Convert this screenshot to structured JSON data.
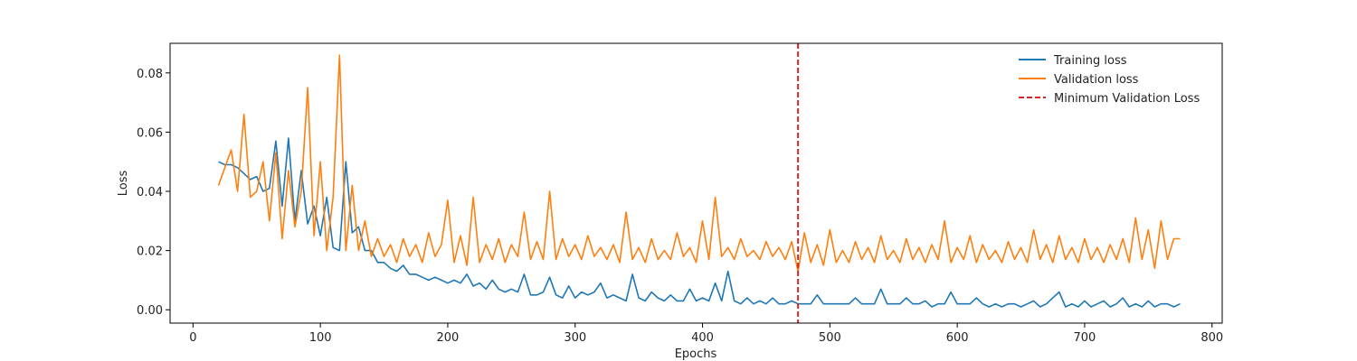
{
  "chart_data": {
    "type": "line",
    "title": "",
    "xlabel": "Epochs",
    "ylabel": "Loss",
    "xlim": [
      -18,
      808
    ],
    "ylim": [
      -0.0045,
      0.09
    ],
    "xticks": [
      0,
      100,
      200,
      300,
      400,
      500,
      600,
      700,
      800
    ],
    "yticks": [
      0.0,
      0.02,
      0.04,
      0.06,
      0.08
    ],
    "ytick_labels": [
      "0.00",
      "0.02",
      "0.04",
      "0.06",
      "0.08"
    ],
    "grid": false,
    "legend_position": "top-right",
    "vline": {
      "x": 475,
      "label": "Minimum Validation Loss",
      "color": "#d62728",
      "style": "dashed"
    },
    "series": [
      {
        "name": "Training loss",
        "color": "#1f77b4",
        "x": [
          20,
          25,
          30,
          35,
          40,
          45,
          50,
          55,
          60,
          65,
          70,
          75,
          80,
          85,
          90,
          95,
          100,
          105,
          110,
          115,
          120,
          125,
          130,
          135,
          140,
          145,
          150,
          155,
          160,
          165,
          170,
          175,
          180,
          185,
          190,
          195,
          200,
          205,
          210,
          215,
          220,
          225,
          230,
          235,
          240,
          245,
          250,
          255,
          260,
          265,
          270,
          275,
          280,
          285,
          290,
          295,
          300,
          305,
          310,
          315,
          320,
          325,
          330,
          335,
          340,
          345,
          350,
          355,
          360,
          365,
          370,
          375,
          380,
          385,
          390,
          395,
          400,
          405,
          410,
          415,
          420,
          425,
          430,
          435,
          440,
          445,
          450,
          455,
          460,
          465,
          470,
          475,
          480,
          485,
          490,
          495,
          500,
          505,
          510,
          515,
          520,
          525,
          530,
          535,
          540,
          545,
          550,
          555,
          560,
          565,
          570,
          575,
          580,
          585,
          590,
          595,
          600,
          605,
          610,
          615,
          620,
          625,
          630,
          635,
          640,
          645,
          650,
          655,
          660,
          665,
          670,
          675,
          680,
          685,
          690,
          695,
          700,
          705,
          710,
          715,
          720,
          725,
          730,
          735,
          740,
          745,
          750,
          755,
          760,
          765,
          770,
          775
        ],
        "y": [
          0.05,
          0.049,
          0.049,
          0.048,
          0.046,
          0.044,
          0.045,
          0.04,
          0.041,
          0.057,
          0.035,
          0.058,
          0.03,
          0.047,
          0.029,
          0.035,
          0.025,
          0.038,
          0.021,
          0.02,
          0.05,
          0.026,
          0.028,
          0.02,
          0.02,
          0.016,
          0.016,
          0.014,
          0.013,
          0.015,
          0.012,
          0.012,
          0.011,
          0.01,
          0.011,
          0.01,
          0.009,
          0.01,
          0.009,
          0.012,
          0.008,
          0.009,
          0.007,
          0.01,
          0.007,
          0.006,
          0.007,
          0.006,
          0.012,
          0.005,
          0.005,
          0.006,
          0.011,
          0.005,
          0.004,
          0.008,
          0.004,
          0.006,
          0.005,
          0.006,
          0.009,
          0.004,
          0.005,
          0.004,
          0.003,
          0.012,
          0.004,
          0.003,
          0.006,
          0.004,
          0.003,
          0.005,
          0.003,
          0.003,
          0.007,
          0.003,
          0.004,
          0.003,
          0.009,
          0.003,
          0.013,
          0.003,
          0.002,
          0.004,
          0.002,
          0.003,
          0.002,
          0.004,
          0.002,
          0.002,
          0.003,
          0.002,
          0.002,
          0.002,
          0.005,
          0.002,
          0.002,
          0.002,
          0.002,
          0.002,
          0.004,
          0.002,
          0.002,
          0.002,
          0.007,
          0.002,
          0.002,
          0.002,
          0.004,
          0.002,
          0.002,
          0.003,
          0.001,
          0.002,
          0.002,
          0.006,
          0.002,
          0.002,
          0.002,
          0.004,
          0.002,
          0.001,
          0.002,
          0.001,
          0.002,
          0.002,
          0.001,
          0.002,
          0.003,
          0.001,
          0.002,
          0.004,
          0.006,
          0.001,
          0.002,
          0.001,
          0.003,
          0.001,
          0.002,
          0.003,
          0.001,
          0.002,
          0.004,
          0.001,
          0.002,
          0.001,
          0.003,
          0.001,
          0.002,
          0.002,
          0.001,
          0.002
        ]
      },
      {
        "name": "Validation loss",
        "color": "#ff7f0e",
        "x": [
          20,
          25,
          30,
          35,
          40,
          45,
          50,
          55,
          60,
          65,
          70,
          75,
          80,
          85,
          90,
          95,
          100,
          105,
          110,
          115,
          120,
          125,
          130,
          135,
          140,
          145,
          150,
          155,
          160,
          165,
          170,
          175,
          180,
          185,
          190,
          195,
          200,
          205,
          210,
          215,
          220,
          225,
          230,
          235,
          240,
          245,
          250,
          255,
          260,
          265,
          270,
          275,
          280,
          285,
          290,
          295,
          300,
          305,
          310,
          315,
          320,
          325,
          330,
          335,
          340,
          345,
          350,
          355,
          360,
          365,
          370,
          375,
          380,
          385,
          390,
          395,
          400,
          405,
          410,
          415,
          420,
          425,
          430,
          435,
          440,
          445,
          450,
          455,
          460,
          465,
          470,
          475,
          480,
          485,
          490,
          495,
          500,
          505,
          510,
          515,
          520,
          525,
          530,
          535,
          540,
          545,
          550,
          555,
          560,
          565,
          570,
          575,
          580,
          585,
          590,
          595,
          600,
          605,
          610,
          615,
          620,
          625,
          630,
          635,
          640,
          645,
          650,
          655,
          660,
          665,
          670,
          675,
          680,
          685,
          690,
          695,
          700,
          705,
          710,
          715,
          720,
          725,
          730,
          735,
          740,
          745,
          750,
          755,
          760,
          765,
          770,
          775
        ],
        "y": [
          0.042,
          0.048,
          0.054,
          0.04,
          0.066,
          0.038,
          0.04,
          0.05,
          0.03,
          0.053,
          0.024,
          0.047,
          0.028,
          0.04,
          0.075,
          0.025,
          0.05,
          0.02,
          0.038,
          0.086,
          0.02,
          0.042,
          0.02,
          0.03,
          0.018,
          0.024,
          0.018,
          0.022,
          0.016,
          0.024,
          0.018,
          0.022,
          0.016,
          0.026,
          0.018,
          0.022,
          0.037,
          0.016,
          0.025,
          0.015,
          0.038,
          0.016,
          0.022,
          0.017,
          0.024,
          0.016,
          0.022,
          0.018,
          0.033,
          0.017,
          0.023,
          0.017,
          0.04,
          0.017,
          0.024,
          0.018,
          0.022,
          0.017,
          0.025,
          0.018,
          0.021,
          0.017,
          0.022,
          0.016,
          0.033,
          0.017,
          0.021,
          0.016,
          0.024,
          0.017,
          0.02,
          0.017,
          0.026,
          0.018,
          0.021,
          0.016,
          0.03,
          0.017,
          0.038,
          0.018,
          0.021,
          0.017,
          0.024,
          0.018,
          0.02,
          0.017,
          0.023,
          0.018,
          0.021,
          0.017,
          0.023,
          0.013,
          0.026,
          0.016,
          0.022,
          0.015,
          0.027,
          0.016,
          0.02,
          0.016,
          0.023,
          0.017,
          0.021,
          0.016,
          0.025,
          0.017,
          0.02,
          0.016,
          0.024,
          0.017,
          0.021,
          0.016,
          0.022,
          0.017,
          0.03,
          0.016,
          0.021,
          0.017,
          0.025,
          0.016,
          0.022,
          0.017,
          0.02,
          0.016,
          0.023,
          0.017,
          0.021,
          0.016,
          0.027,
          0.017,
          0.022,
          0.016,
          0.025,
          0.017,
          0.021,
          0.016,
          0.024,
          0.017,
          0.021,
          0.016,
          0.022,
          0.017,
          0.024,
          0.016,
          0.031,
          0.017,
          0.027,
          0.014,
          0.03,
          0.017,
          0.024,
          0.024
        ]
      }
    ]
  }
}
